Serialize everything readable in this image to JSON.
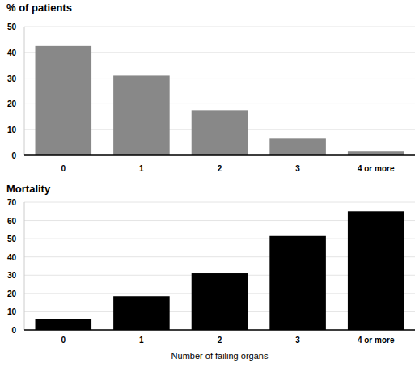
{
  "chart_data": [
    {
      "type": "bar",
      "title": "% of patients",
      "categories": [
        "0",
        "1",
        "2",
        "3",
        "4 or more"
      ],
      "values": [
        42.5,
        31,
        17.5,
        6.5,
        1.5
      ],
      "color": "#888888",
      "ylim": [
        0,
        50
      ],
      "yticks": [
        0,
        10,
        20,
        30,
        40,
        50
      ],
      "grid": true
    },
    {
      "type": "bar",
      "title": "Mortality",
      "x_label": "Number of failing organs",
      "categories": [
        "0",
        "1",
        "2",
        "3",
        "4 or more"
      ],
      "values": [
        6,
        18.5,
        31,
        51.5,
        65
      ],
      "color": "#000000",
      "ylim": [
        0,
        70
      ],
      "yticks": [
        0,
        10,
        20,
        30,
        40,
        50,
        60,
        70
      ],
      "grid": true
    }
  ]
}
